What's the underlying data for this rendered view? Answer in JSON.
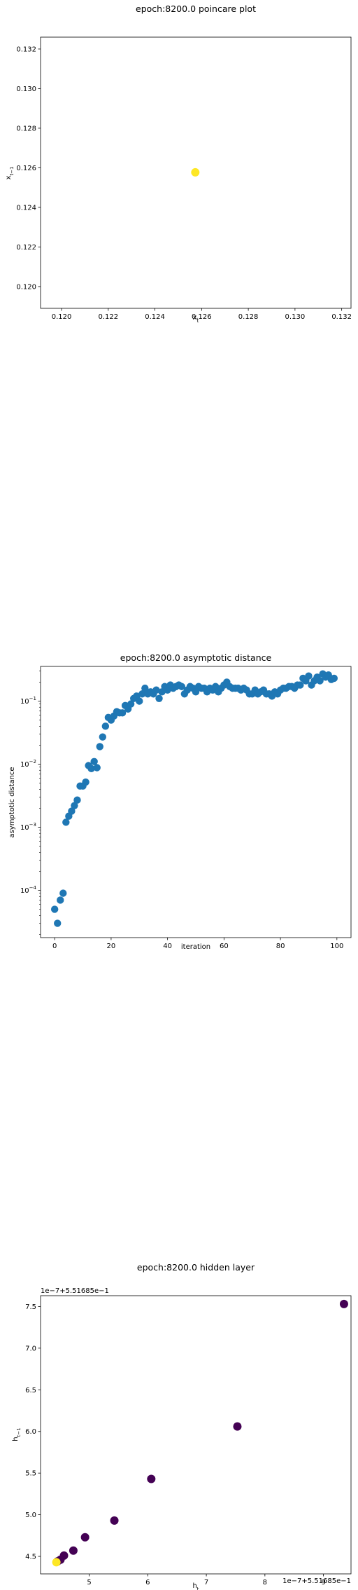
{
  "chart_data": [
    {
      "type": "scatter",
      "title": "epoch:8200.0 poincare plot",
      "xlabel": "x_t",
      "ylabel": "x_{t-1}",
      "xlim": [
        0.1191,
        0.1324
      ],
      "ylim": [
        0.1189,
        0.1326
      ],
      "xticks": [
        "0.120",
        "0.122",
        "0.124",
        "0.126",
        "0.128",
        "0.130",
        "0.132"
      ],
      "yticks": [
        "0.120",
        "0.122",
        "0.124",
        "0.126",
        "0.128",
        "0.130",
        "0.132"
      ],
      "points": [
        {
          "x": 0.12573,
          "y": 0.12577
        }
      ],
      "color": "#fde725",
      "grid": false
    },
    {
      "type": "scatter",
      "title": "epoch:8200.0 asymptotic distance",
      "xlabel": "iteration",
      "ylabel": "asymptotic distance",
      "xlim": [
        -5,
        105
      ],
      "ylim_log10": [
        -4.75,
        -0.45
      ],
      "yscale": "log",
      "xticks": [
        "0",
        "20",
        "40",
        "60",
        "80",
        "100"
      ],
      "yticks": [
        {
          "base": "10",
          "exp": "-4",
          "log": -4
        },
        {
          "base": "10",
          "exp": "-3",
          "log": -3
        },
        {
          "base": "10",
          "exp": "-2",
          "log": -2
        },
        {
          "base": "10",
          "exp": "-1",
          "log": -1
        }
      ],
      "x": [
        0,
        1,
        2,
        3,
        4,
        5,
        6,
        7,
        8,
        9,
        10,
        11,
        12,
        13,
        14,
        15,
        16,
        17,
        18,
        19,
        20,
        21,
        22,
        23,
        24,
        25,
        26,
        27,
        28,
        29,
        30,
        31,
        32,
        33,
        34,
        35,
        36,
        37,
        38,
        39,
        40,
        41,
        42,
        43,
        44,
        45,
        46,
        47,
        48,
        49,
        50,
        51,
        52,
        53,
        54,
        55,
        56,
        57,
        58,
        59,
        60,
        61,
        62,
        63,
        64,
        65,
        66,
        67,
        68,
        69,
        70,
        71,
        72,
        73,
        74,
        75,
        76,
        77,
        78,
        79,
        80,
        81,
        82,
        83,
        84,
        85,
        86,
        87,
        88,
        89,
        90,
        91,
        92,
        93,
        94,
        95,
        96,
        97,
        98,
        99
      ],
      "y": [
        5e-05,
        3e-05,
        7e-05,
        9e-05,
        0.0012,
        0.0015,
        0.0018,
        0.0022,
        0.0027,
        0.0045,
        0.0045,
        0.0052,
        0.0095,
        0.0085,
        0.011,
        0.0088,
        0.019,
        0.027,
        0.04,
        0.055,
        0.05,
        0.058,
        0.068,
        0.065,
        0.065,
        0.085,
        0.075,
        0.09,
        0.11,
        0.12,
        0.1,
        0.13,
        0.16,
        0.13,
        0.14,
        0.13,
        0.15,
        0.11,
        0.14,
        0.17,
        0.15,
        0.18,
        0.16,
        0.17,
        0.18,
        0.17,
        0.13,
        0.15,
        0.17,
        0.16,
        0.14,
        0.17,
        0.16,
        0.16,
        0.14,
        0.16,
        0.15,
        0.17,
        0.14,
        0.16,
        0.18,
        0.2,
        0.17,
        0.16,
        0.16,
        0.16,
        0.15,
        0.16,
        0.15,
        0.13,
        0.13,
        0.15,
        0.13,
        0.14,
        0.15,
        0.13,
        0.13,
        0.12,
        0.14,
        0.13,
        0.15,
        0.16,
        0.16,
        0.17,
        0.17,
        0.16,
        0.18,
        0.18,
        0.23,
        0.21,
        0.25,
        0.18,
        0.21,
        0.24,
        0.21,
        0.27,
        0.24,
        0.26,
        0.22,
        0.23
      ],
      "color": "#1f77b4",
      "grid": false
    },
    {
      "type": "scatter",
      "title": "epoch:8200.0 hidden layer",
      "xlabel": "h_t",
      "ylabel": "h_{t-1}",
      "x_offset_label": "1e−7+5.51685e−1",
      "y_offset_label": "1e−7+5.51685e−1",
      "xlim": [
        4.17,
        9.47
      ],
      "ylim": [
        4.29,
        7.63
      ],
      "xticks": [
        "5",
        "6",
        "7",
        "8",
        "9"
      ],
      "yticks": [
        "4.5",
        "5.0",
        "5.5",
        "6.0",
        "6.5",
        "7.0",
        "7.5"
      ],
      "points": [
        {
          "x": 9.35,
          "y": 7.53,
          "color": "#440154"
        },
        {
          "x": 7.53,
          "y": 6.06,
          "color": "#440154"
        },
        {
          "x": 6.06,
          "y": 5.43,
          "color": "#440154"
        },
        {
          "x": 5.43,
          "y": 4.93,
          "color": "#440154"
        },
        {
          "x": 4.93,
          "y": 4.73,
          "color": "#440154"
        },
        {
          "x": 4.73,
          "y": 4.57,
          "color": "#440154"
        },
        {
          "x": 4.57,
          "y": 4.51,
          "color": "#440154"
        },
        {
          "x": 4.51,
          "y": 4.46,
          "color": "#440154"
        },
        {
          "x": 4.46,
          "y": 4.44,
          "color": "#440154"
        },
        {
          "x": 4.44,
          "y": 4.43,
          "color": "#fde725"
        }
      ],
      "grid": false
    }
  ]
}
